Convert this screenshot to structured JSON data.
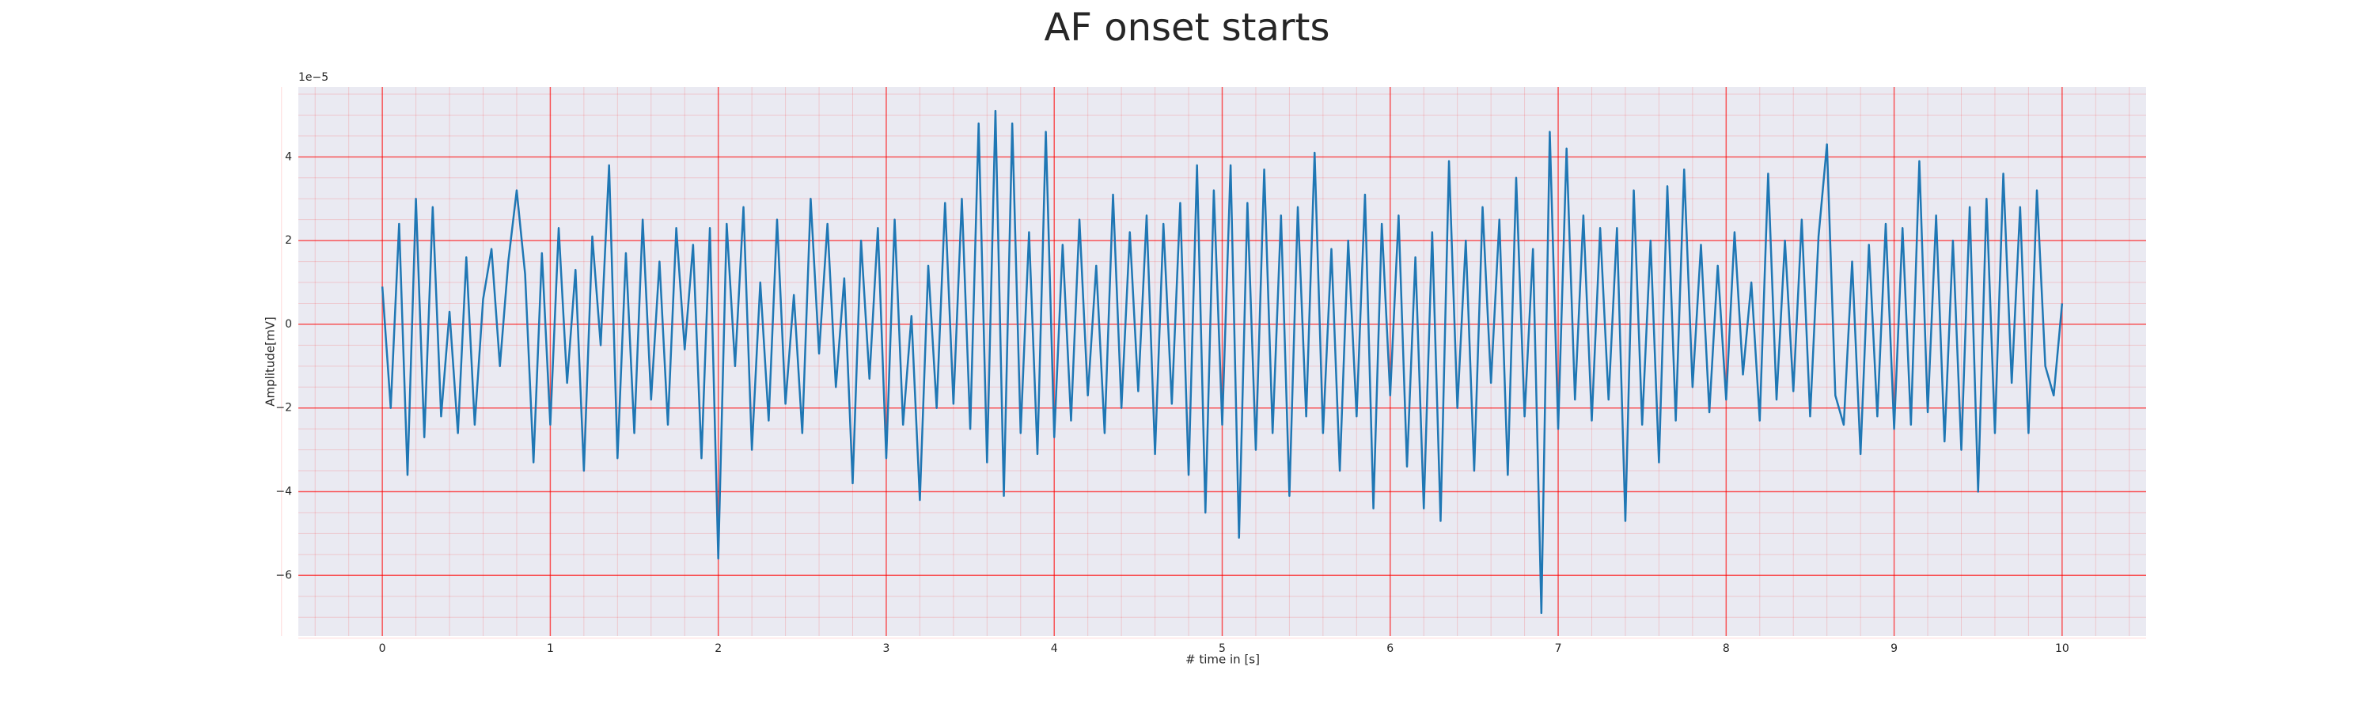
{
  "chart_data": {
    "type": "line",
    "title": "AF onset starts",
    "xlabel": "# time in [s]",
    "ylabel": "Amplitude[mV]",
    "y_offset_label": "1e−5",
    "color": "#1f77b4",
    "background": "#eaeaf2",
    "grid": true,
    "grid_color": "#ff0000",
    "minor_grid": true,
    "xlim": [
      -0.5,
      10.5
    ],
    "ylim": [
      -7.45,
      5.67
    ],
    "xticks": [
      0,
      1,
      2,
      3,
      4,
      5,
      6,
      7,
      8,
      9,
      10
    ],
    "yticks": [
      {
        "value": -6,
        "label": "−6"
      },
      {
        "value": -4,
        "label": "−4"
      },
      {
        "value": -2,
        "label": "−2"
      },
      0,
      2,
      4
    ],
    "x": [
      0,
      0.05,
      0.1,
      0.15,
      0.2,
      0.25,
      0.3,
      0.35,
      0.4,
      0.45,
      0.5,
      0.55,
      0.6,
      0.65,
      0.7,
      0.75,
      0.8,
      0.85,
      0.9,
      0.95,
      1,
      1.05,
      1.1,
      1.15,
      1.2,
      1.25,
      1.3,
      1.35,
      1.4,
      1.45,
      1.5,
      1.55,
      1.6,
      1.65,
      1.7,
      1.75,
      1.8,
      1.85,
      1.9,
      1.95,
      2,
      2.05,
      2.1,
      2.15,
      2.2,
      2.25,
      2.3,
      2.35,
      2.4,
      2.45,
      2.5,
      2.55,
      2.6,
      2.65,
      2.7,
      2.75,
      2.8,
      2.85,
      2.9,
      2.95,
      3,
      3.05,
      3.1,
      3.15,
      3.2,
      3.25,
      3.3,
      3.35,
      3.4,
      3.45,
      3.5,
      3.55,
      3.6,
      3.65,
      3.7,
      3.75,
      3.8,
      3.85,
      3.9,
      3.95,
      4,
      4.05,
      4.1,
      4.15,
      4.2,
      4.25,
      4.3,
      4.35,
      4.4,
      4.45,
      4.5,
      4.55,
      4.6,
      4.65,
      4.7,
      4.75,
      4.8,
      4.85,
      4.9,
      4.95,
      5,
      5.05,
      5.1,
      5.15,
      5.2,
      5.25,
      5.3,
      5.35,
      5.4,
      5.45,
      5.5,
      5.55,
      5.6,
      5.65,
      5.7,
      5.75,
      5.8,
      5.85,
      5.9,
      5.95,
      6,
      6.05,
      6.1,
      6.15,
      6.2,
      6.25,
      6.3,
      6.35,
      6.4,
      6.45,
      6.5,
      6.55,
      6.6,
      6.65,
      6.7,
      6.75,
      6.8,
      6.85,
      6.9,
      6.95,
      7,
      7.05,
      7.1,
      7.15,
      7.2,
      7.25,
      7.3,
      7.35,
      7.4,
      7.45,
      7.5,
      7.55,
      7.6,
      7.65,
      7.7,
      7.75,
      7.8,
      7.85,
      7.9,
      7.95,
      8,
      8.05,
      8.1,
      8.15,
      8.2,
      8.25,
      8.3,
      8.35,
      8.4,
      8.45,
      8.5,
      8.55,
      8.6,
      8.65,
      8.7,
      8.75,
      8.8,
      8.85,
      8.9,
      8.95,
      9,
      9.05,
      9.1,
      9.15,
      9.2,
      9.25,
      9.3,
      9.35,
      9.4,
      9.45,
      9.5,
      9.55,
      9.6,
      9.65,
      9.7,
      9.75,
      9.8,
      9.85,
      9.9,
      9.95,
      10
    ],
    "values": [
      0.9,
      -2.0,
      2.4,
      -3.6,
      3.0,
      -2.7,
      2.8,
      -2.2,
      0.3,
      -2.6,
      1.6,
      -2.4,
      0.6,
      1.8,
      -1.0,
      1.5,
      3.2,
      1.2,
      -3.3,
      1.7,
      -2.4,
      2.3,
      -1.4,
      1.3,
      -3.5,
      2.1,
      -0.5,
      3.8,
      -3.2,
      1.7,
      -2.6,
      2.5,
      -1.8,
      1.5,
      -2.4,
      2.3,
      -0.6,
      1.9,
      -3.2,
      2.3,
      -5.6,
      2.4,
      -1.0,
      2.8,
      -3.0,
      1.0,
      -2.3,
      2.5,
      -1.9,
      0.7,
      -2.6,
      3.0,
      -0.7,
      2.4,
      -1.5,
      1.1,
      -3.8,
      2.0,
      -1.3,
      2.3,
      -3.2,
      2.5,
      -2.4,
      0.2,
      -4.2,
      1.4,
      -2.0,
      2.9,
      -1.9,
      3.0,
      -2.5,
      4.8,
      -3.3,
      5.1,
      -4.1,
      4.8,
      -2.6,
      2.2,
      -3.1,
      4.6,
      -2.7,
      1.9,
      -2.3,
      2.5,
      -1.7,
      1.4,
      -2.6,
      3.1,
      -2.0,
      2.2,
      -1.6,
      2.6,
      -3.1,
      2.4,
      -1.9,
      2.9,
      -3.6,
      3.8,
      -4.5,
      3.2,
      -2.4,
      3.8,
      -5.1,
      2.9,
      -3.0,
      3.7,
      -2.6,
      2.6,
      -4.1,
      2.8,
      -2.2,
      4.1,
      -2.6,
      1.8,
      -3.5,
      2.0,
      -2.2,
      3.1,
      -4.4,
      2.4,
      -1.7,
      2.6,
      -3.4,
      1.6,
      -4.4,
      2.2,
      -4.7,
      3.9,
      -2.0,
      2.0,
      -3.5,
      2.8,
      -1.4,
      2.5,
      -3.6,
      3.5,
      -2.2,
      1.8,
      -6.9,
      4.6,
      -2.5,
      4.2,
      -1.8,
      2.6,
      -2.3,
      2.3,
      -1.8,
      2.3,
      -4.7,
      3.2,
      -2.4,
      2.0,
      -3.3,
      3.3,
      -2.3,
      3.7,
      -1.5,
      1.9,
      -2.1,
      1.4,
      -1.8,
      2.2,
      -1.2,
      1.0,
      -2.3,
      3.6,
      -1.8,
      2.0,
      -1.6,
      2.5,
      -2.2,
      2.1,
      4.3,
      -1.7,
      -2.4,
      1.5,
      -3.1,
      1.9,
      -2.2,
      2.4,
      -2.5,
      2.3,
      -2.4,
      3.9,
      -2.1,
      2.6,
      -2.8,
      2.0,
      -3.0,
      2.8,
      -4.0,
      3.0,
      -2.6,
      3.6,
      -1.4,
      2.8,
      -2.6,
      3.2,
      -1.0,
      -1.7,
      0.5
    ]
  }
}
